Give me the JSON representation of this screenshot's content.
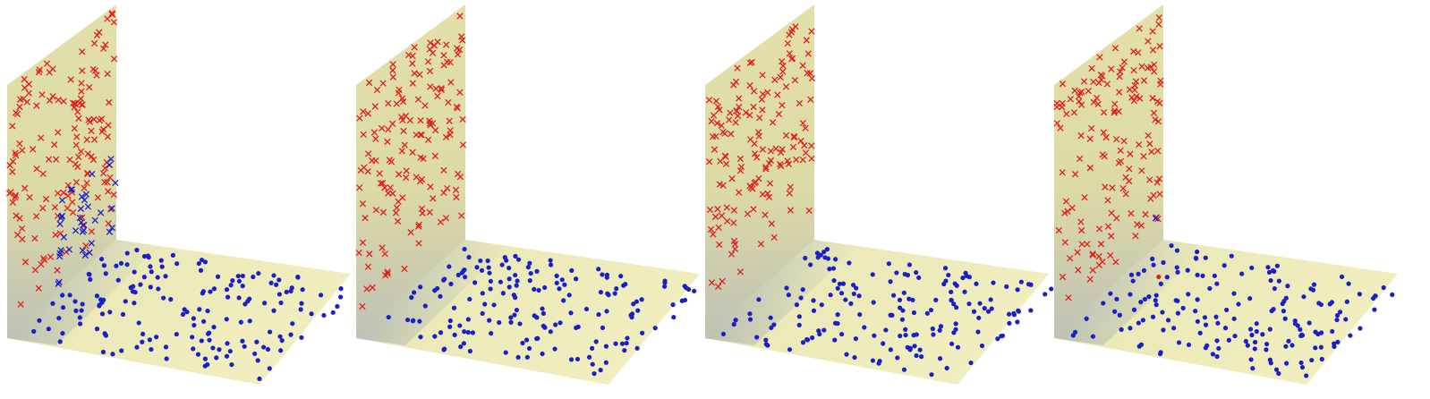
{
  "figure": {
    "panels": [
      {
        "wall_crosses_blue": 38,
        "floor_dots_red": 0
      },
      {
        "wall_crosses_blue": 0,
        "floor_dots_red": 0
      },
      {
        "wall_crosses_blue": 0,
        "floor_dots_red": 0
      },
      {
        "wall_crosses_blue": 1,
        "floor_dots_red": 1
      }
    ],
    "colors": {
      "plane_fill": "#ecebb2",
      "plane_fill_top": "#dcd9a4",
      "plane_shade": "#9aa4b0",
      "red_marker": "#e0201c",
      "blue_marker": "#1a1fc8"
    },
    "markers": {
      "wall": "x-cross",
      "floor": "filled-dot"
    }
  }
}
